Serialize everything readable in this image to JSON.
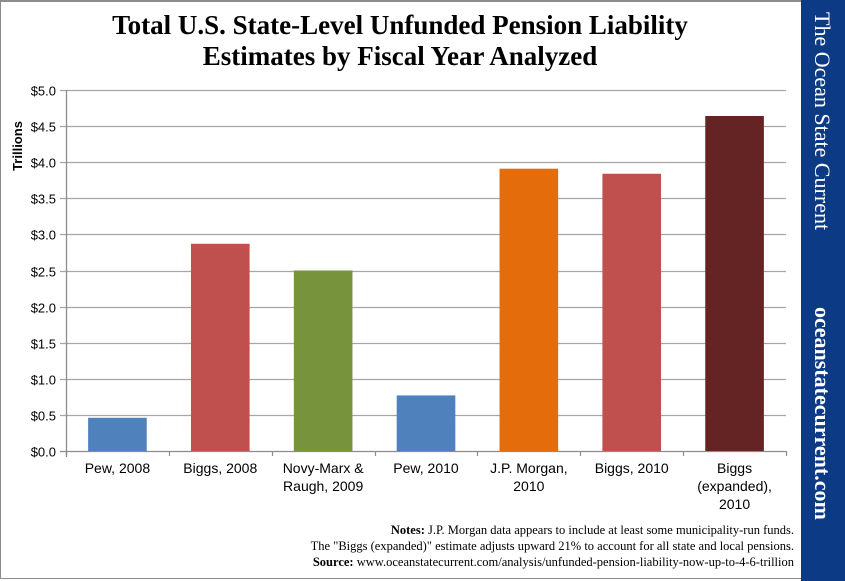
{
  "chart_data": {
    "type": "bar",
    "title": "Total U.S. State-Level Unfunded Pension Liability Estimates by Fiscal Year Analyzed",
    "title_lines": [
      "Total U.S. State-Level Unfunded Pension Liability",
      "Estimates by Fiscal Year Analyzed"
    ],
    "xlabel": "",
    "ylabel": "Trillions",
    "ylim": [
      0,
      5
    ],
    "yticks": [
      0,
      0.5,
      1.0,
      1.5,
      2.0,
      2.5,
      3.0,
      3.5,
      4.0,
      4.5,
      5.0
    ],
    "ytick_labels": [
      "$0.0",
      "$0.5",
      "$1.0",
      "$1.5",
      "$2.0",
      "$2.5",
      "$3.0",
      "$3.5",
      "$4.0",
      "$4.5",
      "$5.0"
    ],
    "grid": true,
    "legend": "none",
    "categories": [
      [
        "Pew, 2008"
      ],
      [
        "Biggs, 2008"
      ],
      [
        "Novy-Marx &",
        "Raugh, 2009"
      ],
      [
        "Pew, 2010"
      ],
      [
        "J.P. Morgan,",
        "2010"
      ],
      [
        "Biggs, 2010"
      ],
      [
        "Biggs",
        "(expanded),",
        "2010"
      ]
    ],
    "values": [
      0.46,
      2.87,
      2.5,
      0.77,
      3.91,
      3.84,
      4.64
    ],
    "colors": [
      "#4f81bd",
      "#c0504d",
      "#77933c",
      "#4f81bd",
      "#e46c0a",
      "#c0504d",
      "#632423"
    ]
  },
  "branding": {
    "name": "The Ocean State Current",
    "url": "oceanstatecurrent.com",
    "color": "#0d3a85"
  },
  "notes": {
    "notes_label": "Notes:",
    "notes_line1": "J.P. Morgan data appears to include  at least some municipality-run  funds.",
    "notes_line2": "The \"Biggs  (expanded)\"  estimate  adjusts upward 21% to account for all state and local pensions.",
    "source_label": "Source:",
    "source_text": "www.oceanstatecurrent.com/analysis/unfunded-pension-liability-now-up-to-4-6-trillion"
  }
}
